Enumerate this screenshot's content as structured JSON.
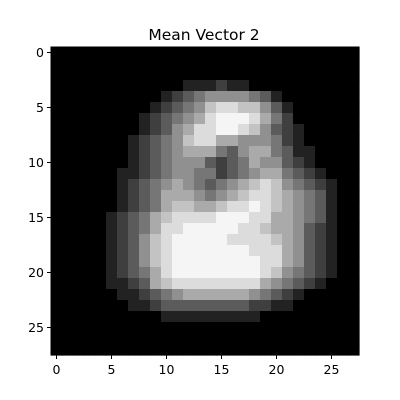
{
  "chart_data": {
    "type": "heatmap",
    "title": "Mean Vector 2",
    "colormap": "gray",
    "rows": 28,
    "cols": 28,
    "x_ticks": [
      0,
      5,
      10,
      15,
      20,
      25
    ],
    "y_ticks": [
      0,
      5,
      10,
      15,
      20,
      25
    ],
    "xlim": [
      -0.5,
      27.5
    ],
    "ylim": [
      27.5,
      -0.5
    ],
    "grid": false,
    "values_rows": [
      "0000000000000000000000000000",
      "0000000000000000000000000000",
      "0000000000000000000000000000",
      "0000000000001112110000000000",
      "0000000000123455554310000000",
      "0000000001234578877531000000",
      "0000000012345689998642000000",
      "0000000012356889987532100000",
      "0000000123457886655542100000",
      "0000000123456664356643110000",
      "0000000123455532346553210000",
      "0000001123455442345664321000",
      "0000001234565434567875432100",
      "0000001234666545678876543100",
      "0000001234677667889876543100",
      "0000012346788889998866543100",
      "0000012346889999988766532100",
      "0000012357899999888876532100",
      "0000012357899999998886532100",
      "0000012357899999999886532100",
      "0000012346899999999875432100",
      "0000011236788888888654321000",
      "0000001123456666665432100000",
      "0000000112333333332211000000",
      "0000000000111111111000000000",
      "0000000000000000000000000000",
      "0000000000000000000000000000",
      "0000000000000000000000000000"
    ]
  }
}
